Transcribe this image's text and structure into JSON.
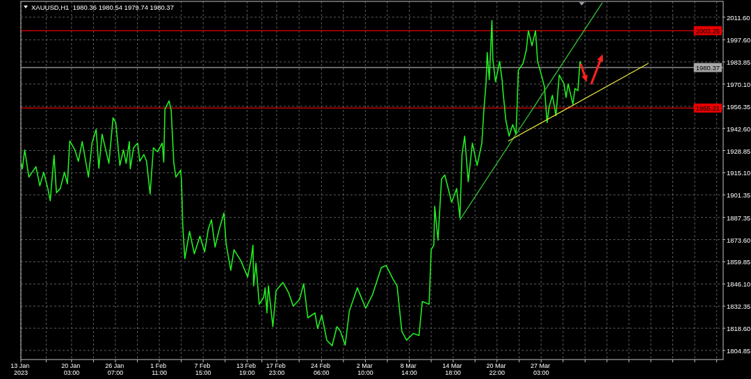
{
  "chart_data": {
    "type": "line",
    "title": "XAUUSD,H1  1980.36 1980.54 1979.74 1980.37",
    "xlim": [
      "2023-01-13",
      "2023-04-21T17:00"
    ],
    "xticks": [
      {
        "value": "2023-01-13",
        "label": "13 Jan 2023"
      },
      {
        "value": "2023-01-16T13:30",
        "label": null
      },
      {
        "value": "2023-01-20T03:00",
        "label": "20 Jan 03:00"
      },
      {
        "value": "2023-01-23T05:00",
        "label": null
      },
      {
        "value": "2023-01-26T07:00",
        "label": "26 Jan 07:00"
      },
      {
        "value": "2023-01-29T09:00",
        "label": null
      },
      {
        "value": "2023-02-01T11:00",
        "label": "1 Feb 11:00"
      },
      {
        "value": "2023-02-04T13:00",
        "label": null
      },
      {
        "value": "2023-02-07T15:00",
        "label": "7 Feb 15:00"
      },
      {
        "value": "2023-02-10T17:00",
        "label": null
      },
      {
        "value": "2023-02-13T19:00",
        "label": "13 Feb 19:00"
      },
      {
        "value": "2023-02-15T21:00",
        "label": null
      },
      {
        "value": "2023-02-17T23:00",
        "label": "17 Feb 23:00"
      },
      {
        "value": "2023-02-21T02:30",
        "label": null
      },
      {
        "value": "2023-02-24T06:00",
        "label": "24 Feb 06:00"
      },
      {
        "value": "2023-02-27T08:00",
        "label": null
      },
      {
        "value": "2023-03-02T10:00",
        "label": "2 Mar 10:00"
      },
      {
        "value": "2023-03-05T12:00",
        "label": null
      },
      {
        "value": "2023-03-08T14:00",
        "label": "8 Mar 14:00"
      },
      {
        "value": "2023-03-11T16:00",
        "label": null
      },
      {
        "value": "2023-03-14T18:00",
        "label": "14 Mar 18:00"
      },
      {
        "value": "2023-03-17T20:00",
        "label": null
      },
      {
        "value": "2023-03-20T22:00",
        "label": "20 Mar 22:00"
      },
      {
        "value": "2023-03-24T00:30",
        "label": null
      },
      {
        "value": "2023-03-27T03:00",
        "label": "27 Mar 03:00"
      },
      {
        "value": "2023-03-30T05:00",
        "label": null
      },
      {
        "value": "2023-04-02T07:00",
        "label": null
      },
      {
        "value": "2023-04-05T09:00",
        "label": null
      },
      {
        "value": "2023-04-08T11:00",
        "label": null
      },
      {
        "value": "2023-04-11T13:00",
        "label": null
      },
      {
        "value": "2023-04-14T15:00",
        "label": null
      },
      {
        "value": "2023-04-17T17:00",
        "label": null
      },
      {
        "value": "2023-04-20T19:00",
        "label": null
      }
    ],
    "ylim": [
      1799.2,
      2021.4
    ],
    "yticks": [
      1804.85,
      {
        "value": 1818.6,
        "label": "1818.60"
      },
      1832.35,
      {
        "value": 1846.1,
        "label": "1846.10"
      },
      1859.85,
      {
        "value": 1873.6,
        "label": "1873.60"
      },
      1887.35,
      1901.35,
      {
        "value": 1915.1,
        "label": "1915.10"
      },
      1928.85,
      {
        "value": 1942.6,
        "label": "1942.60"
      },
      1956.35,
      {
        "value": 1970.1,
        "label": "1970.10"
      },
      1983.85,
      {
        "value": 1997.6,
        "label": "1997.60"
      },
      {
        "value": 2011.6,
        "label": "2011.60"
      }
    ],
    "grid": true,
    "series": [
      {
        "color": "#22ee22",
        "x": [
          "2023-01-13T01:00",
          "2023-01-13T05:00",
          "2023-01-13T13:00",
          "2023-01-14T03:00",
          "2023-01-15T03:00",
          "2023-01-15T16:00",
          "2023-01-16T05:00",
          "2023-01-16T19:00",
          "2023-01-17T03:00",
          "2023-01-17T16:00",
          "2023-01-18T00:00",
          "2023-01-18T13:00",
          "2023-01-19T03:00",
          "2023-01-19T13:00",
          "2023-01-19T21:00",
          "2023-01-20T14:00",
          "2023-01-21T02:00",
          "2023-01-21T15:00",
          "2023-01-22T12:00",
          "2023-01-23T00:00",
          "2023-01-23T14:00",
          "2023-01-23T23:00",
          "2023-01-24T10:00",
          "2023-01-25T09:00",
          "2023-01-25T23:00",
          "2023-01-26T08:00",
          "2023-01-26T22:00",
          "2023-01-27T10:00",
          "2023-01-27T19:00",
          "2023-01-28T06:00",
          "2023-01-28T09:00",
          "2023-01-28T20:00",
          "2023-01-29T10:00",
          "2023-01-29T17:00",
          "2023-01-30T07:00",
          "2023-01-30T16:00",
          "2023-01-31T04:00",
          "2023-01-31T15:00",
          "2023-02-01T05:00",
          "2023-02-01T21:00",
          "2023-02-02T02:00",
          "2023-02-02T06:00",
          "2023-02-02T20:00",
          "2023-02-03T03:00",
          "2023-02-03T12:00",
          "2023-02-03T19:00",
          "2023-02-04T11:00",
          "2023-02-04T14:00",
          "2023-02-04T18:00",
          "2023-02-05T01:00",
          "2023-02-05T17:00",
          "2023-02-06T09:00",
          "2023-02-07T04:00",
          "2023-02-07T20:00",
          "2023-02-08T08:00",
          "2023-02-08T19:00",
          "2023-02-09T07:00",
          "2023-02-09T21:00",
          "2023-02-10T13:00",
          "2023-02-10T20:00",
          "2023-02-11T12:00",
          "2023-02-11T23:00",
          "2023-02-12T22:00",
          "2023-02-13T21:00",
          "2023-02-14T09:00",
          "2023-02-14T15:00",
          "2023-02-14T17:00",
          "2023-02-15T01:00",
          "2023-02-15T12:00",
          "2023-02-16T03:00",
          "2023-02-16T08:00",
          "2023-02-16T14:00",
          "2023-02-16T19:00",
          "2023-02-17T10:00",
          "2023-02-17T21:00",
          "2023-02-18T20:00",
          "2023-02-19T15:00",
          "2023-02-20T07:00",
          "2023-02-21T04:00",
          "2023-02-21T18:00",
          "2023-02-22T08:00",
          "2023-02-23T08:00",
          "2023-02-23T17:00",
          "2023-02-24T07:00",
          "2023-02-25T00:00",
          "2023-02-25T18:00",
          "2023-02-26T10:00",
          "2023-02-26T22:00",
          "2023-02-27T14:00",
          "2023-02-28T04:00",
          "2023-03-01T07:00",
          "2023-03-02T11:00",
          "2023-03-03T10:00",
          "2023-03-04T16:00",
          "2023-03-05T08:00",
          "2023-03-06T07:00",
          "2023-03-06T21:00",
          "2023-03-07T13:00",
          "2023-03-08T05:00",
          "2023-03-09T04:00",
          "2023-03-09T23:00",
          "2023-03-10T10:00",
          "2023-03-11T09:00",
          "2023-03-11T16:00",
          "2023-03-12T01:00",
          "2023-03-12T04:00",
          "2023-03-12T15:00",
          "2023-03-13T03:00",
          "2023-03-13T14:00",
          "2023-03-14T13:00",
          "2023-03-15T06:00",
          "2023-03-15T17:00",
          "2023-03-16T00:00",
          "2023-03-16T09:00",
          "2023-03-16T21:00",
          "2023-03-17T11:00",
          "2023-03-18T03:00",
          "2023-03-18T19:00",
          "2023-03-19T02:00",
          "2023-03-19T09:00",
          "2023-03-19T13:00",
          "2023-03-19T20:00",
          "2023-03-20T05:00",
          "2023-03-20T08:00",
          "2023-03-20T17:00",
          "2023-03-21T07:00",
          "2023-03-21T16:00",
          "2023-03-21T18:00",
          "2023-03-22T04:00",
          "2023-03-22T15:00",
          "2023-03-23T03:00",
          "2023-03-23T14:00",
          "2023-03-23T17:00",
          "2023-03-23T22:00",
          "2023-03-24T14:00",
          "2023-03-25T01:00",
          "2023-03-25T08:00",
          "2023-03-25T20:00",
          "2023-03-26T08:00",
          "2023-03-26T15:00",
          "2023-03-27T02:00",
          "2023-03-27T14:00",
          "2023-03-27T23:00",
          "2023-03-28T06:00",
          "2023-03-28T17:00",
          "2023-03-29T05:00",
          "2023-03-29T16:00",
          "2023-03-30T08:00",
          "2023-03-30T15:00",
          "2023-03-30T22:00",
          "2023-03-31T14:00",
          "2023-03-31T21:00",
          "2023-04-01T07:00",
          "2023-04-01T14:00",
          "2023-04-01T20:00"
        ],
        "values": [
          1920.9,
          1917.5,
          1929.3,
          1912.4,
          1918.8,
          1907.0,
          1915.4,
          1905.3,
          1897.7,
          1925.9,
          1902.7,
          1905.3,
          1915.4,
          1908.2,
          1934.8,
          1929.3,
          1922.2,
          1934.4,
          1912.4,
          1933.5,
          1942.0,
          1917.9,
          1939.0,
          1920.9,
          1949.2,
          1946.2,
          1919.6,
          1929.3,
          1920.9,
          1934.4,
          1917.5,
          1930.6,
          1933.5,
          1922.2,
          1926.4,
          1922.2,
          1901.9,
          1930.6,
          1928.1,
          1933.5,
          1921.7,
          1954.6,
          1959.7,
          1953.8,
          1920.9,
          1912.4,
          1916.7,
          1909.5,
          1882.9,
          1861.8,
          1878.7,
          1864.8,
          1875.7,
          1866.0,
          1879.9,
          1885.9,
          1869.0,
          1879.9,
          1890.1,
          1871.5,
          1854.6,
          1867.3,
          1860.5,
          1850.4,
          1861.8,
          1870.2,
          1844.9,
          1858.9,
          1833.5,
          1837.8,
          1843.7,
          1828.1,
          1844.9,
          1819.6,
          1842.0,
          1847.0,
          1840.7,
          1832.3,
          1836.5,
          1846.2,
          1825.1,
          1828.1,
          1818.4,
          1826.8,
          1811.2,
          1807.8,
          1819.6,
          1816.7,
          1808.2,
          1829.3,
          1843.7,
          1831.0,
          1839.4,
          1856.3,
          1857.6,
          1849.2,
          1844.9,
          1816.7,
          1811.2,
          1815.4,
          1814.1,
          1835.2,
          1833.5,
          1867.3,
          1870.2,
          1894.3,
          1873.2,
          1911.2,
          1913.7,
          1896.8,
          1905.3,
          1887.1,
          1926.4,
          1937.8,
          1909.5,
          1933.5,
          1919.6,
          1933.5,
          1954.6,
          1970.3,
          1989.7,
          1972.8,
          2009.5,
          1985.4,
          1971.5,
          1984.2,
          1971.5,
          1966.0,
          1947.5,
          1937.8,
          1944.9,
          1939.0,
          1951.7,
          1978.7,
          1982.9,
          1991.3,
          2003.2,
          1993.9,
          2003.2,
          1984.2,
          1977.0,
          1968.6,
          1946.2,
          1955.9,
          1963.1,
          1950.4,
          1975.7,
          1970.2,
          1961.8,
          1970.2,
          1957.6,
          1967.3,
          1966.0,
          1984.2,
          1980.4
        ]
      },
      {
        "type": "line",
        "color": "#33c433",
        "x": [
          "2023-03-15T17:00",
          "2023-04-04T17:00"
        ],
        "values": [
          1885.9,
          2020.5
        ]
      },
      {
        "type": "line",
        "color": "#e8e840",
        "x": [
          "2023-03-22T13:00",
          "2023-04-11T04:00"
        ],
        "values": [
          1934.8,
          1982.9
        ]
      }
    ],
    "ref_lines": [
      {
        "axis": "y",
        "value": 2003.25,
        "label": "2003.25",
        "color": "#e60000"
      },
      {
        "axis": "y",
        "value": 1980.37,
        "label": "1980.37",
        "color": "#a8a8a8"
      },
      {
        "axis": "y",
        "value": 1955.21,
        "label": "1955.21",
        "color": "#e60000"
      }
    ]
  }
}
